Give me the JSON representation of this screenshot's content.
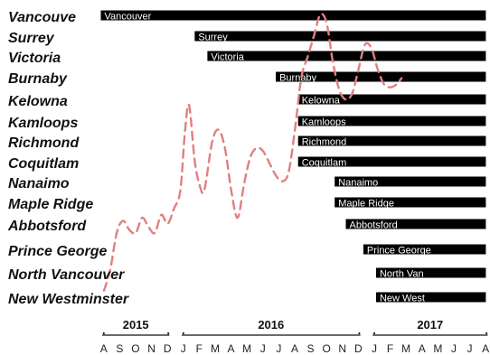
{
  "chart_data": {
    "type": "bar",
    "orientation": "horizontal-timeline",
    "title": "",
    "xlabel": "",
    "ylabel": "",
    "colors": {
      "bar": "#000000",
      "bar_text": "#ffffff",
      "trend": "#e08080"
    },
    "axis": {
      "months": [
        "A",
        "S",
        "O",
        "N",
        "D",
        "J",
        "F",
        "M",
        "A",
        "M",
        "J",
        "J",
        "A",
        "S",
        "O",
        "N",
        "D",
        "J",
        "F",
        "M",
        "A",
        "M",
        "J",
        "J",
        "A"
      ],
      "years": [
        {
          "label": "2015",
          "start": 0,
          "end": 4
        },
        {
          "label": "2016",
          "start": 5,
          "end": 16
        },
        {
          "label": "2017",
          "start": 17,
          "end": 24
        }
      ],
      "start": "2015-08",
      "end": "2017-08"
    },
    "cities": [
      {
        "label": "Vancouve",
        "bar_text": "Vancouver",
        "start": -0.2
      },
      {
        "label": "Surrey",
        "bar_text": "Surrey",
        "start": 5.7
      },
      {
        "label": "Victoria",
        "bar_text": "Victoria",
        "start": 6.5
      },
      {
        "label": "Burnaby",
        "bar_text": "Burnaby",
        "start": 10.8
      },
      {
        "label": "Kelowna",
        "bar_text": "Kelowna",
        "start": 12.2
      },
      {
        "label": "Kamloops",
        "bar_text": "Kamloops",
        "start": 12.2
      },
      {
        "label": "Richmond",
        "bar_text": "Richmond",
        "start": 12.2
      },
      {
        "label": "Coquitlam",
        "bar_text": "Coquitlam",
        "start": 12.2
      },
      {
        "label": "Nanaimo",
        "bar_text": "Nanaimo",
        "start": 14.5
      },
      {
        "label": "Maple Ridge",
        "bar_text": "Maple Ridge",
        "start": 14.5
      },
      {
        "label": "Abbotsford",
        "bar_text": "Abbotsford",
        "start": 15.2
      },
      {
        "label": "Prince George",
        "bar_text": "Prince George",
        "start": 16.3
      },
      {
        "label": "North Vancouver",
        "bar_text": "North Van",
        "start": 17.1
      },
      {
        "label": "New Westminster",
        "bar_text": "New West",
        "start": 17.1
      }
    ],
    "bar_end": 24.0,
    "trend": {
      "series_style": "dashed",
      "points": [
        [
          0.0,
          0.09
        ],
        [
          0.4,
          0.16
        ],
        [
          0.8,
          0.28
        ],
        [
          1.2,
          0.32
        ],
        [
          1.6,
          0.29
        ],
        [
          2.0,
          0.28
        ],
        [
          2.4,
          0.33
        ],
        [
          2.8,
          0.3
        ],
        [
          3.2,
          0.28
        ],
        [
          3.6,
          0.34
        ],
        [
          4.0,
          0.31
        ],
        [
          4.4,
          0.36
        ],
        [
          4.8,
          0.42
        ],
        [
          5.1,
          0.62
        ],
        [
          5.35,
          0.7
        ],
        [
          5.7,
          0.52
        ],
        [
          6.0,
          0.44
        ],
        [
          6.3,
          0.42
        ],
        [
          6.8,
          0.58
        ],
        [
          7.2,
          0.62
        ],
        [
          7.6,
          0.56
        ],
        [
          8.0,
          0.42
        ],
        [
          8.4,
          0.33
        ],
        [
          8.8,
          0.44
        ],
        [
          9.2,
          0.53
        ],
        [
          9.6,
          0.56
        ],
        [
          10.0,
          0.55
        ],
        [
          10.4,
          0.51
        ],
        [
          10.8,
          0.47
        ],
        [
          11.2,
          0.45
        ],
        [
          11.6,
          0.48
        ],
        [
          12.0,
          0.62
        ],
        [
          12.4,
          0.79
        ],
        [
          12.8,
          0.86
        ],
        [
          13.2,
          0.93
        ],
        [
          13.6,
          1.0
        ],
        [
          14.0,
          0.97
        ],
        [
          14.4,
          0.84
        ],
        [
          14.8,
          0.75
        ],
        [
          15.2,
          0.72
        ],
        [
          15.6,
          0.74
        ],
        [
          16.0,
          0.82
        ],
        [
          16.4,
          0.9
        ],
        [
          16.8,
          0.89
        ],
        [
          17.2,
          0.82
        ],
        [
          17.6,
          0.77
        ],
        [
          18.0,
          0.76
        ],
        [
          18.4,
          0.77
        ],
        [
          18.7,
          0.79
        ]
      ]
    }
  }
}
